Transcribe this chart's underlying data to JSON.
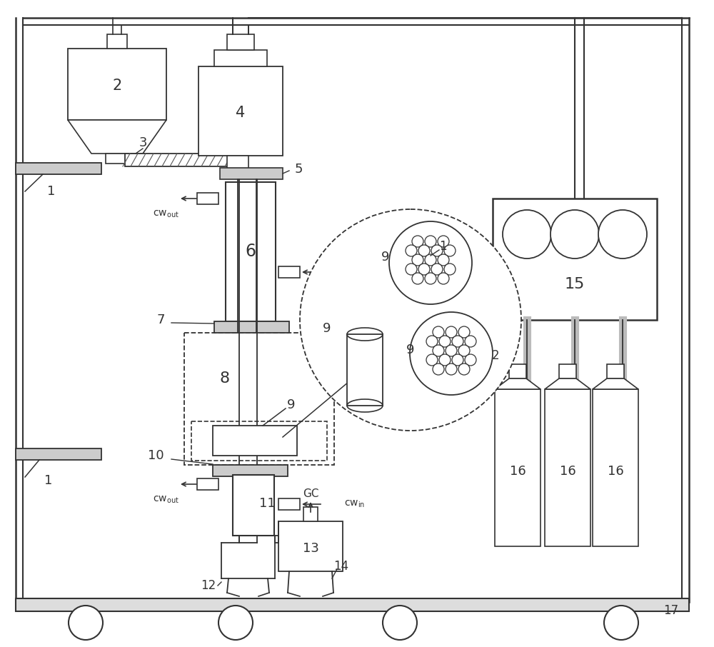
{
  "fig_width": 10.0,
  "fig_height": 9.06,
  "dpi": 100,
  "bg_color": "#ffffff",
  "line_color": "#333333",
  "lw": 1.2
}
